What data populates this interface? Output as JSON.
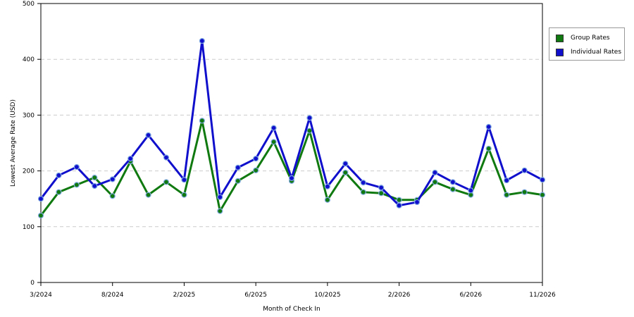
{
  "chart_data": {
    "type": "line",
    "xlabel": "Month of Check In",
    "ylabel": "Lowest Average Rate (USD)",
    "ylim": [
      0,
      500
    ],
    "yticks": [
      "0",
      "100",
      "200",
      "300",
      "400",
      "500"
    ],
    "x_tick_labels": [
      {
        "label": "3/2024",
        "index": 0
      },
      {
        "label": "8/2024",
        "index": 4
      },
      {
        "label": "2/2025",
        "index": 8
      },
      {
        "label": "6/2025",
        "index": 12
      },
      {
        "label": "10/2025",
        "index": 16
      },
      {
        "label": "2/2026",
        "index": 20
      },
      {
        "label": "6/2026",
        "index": 24
      },
      {
        "label": "11/2026",
        "index": 28
      }
    ],
    "grid": "horizontal dashed",
    "legend_position": "right",
    "series": [
      {
        "name": "Group Rates",
        "color": "#107a10",
        "values": [
          120,
          162,
          175,
          188,
          155,
          217,
          157,
          180,
          157,
          290,
          128,
          182,
          201,
          252,
          182,
          272,
          148,
          197,
          162,
          160,
          148,
          148,
          180,
          167,
          157,
          240,
          157,
          162,
          157
        ]
      },
      {
        "name": "Individual Rates",
        "color": "#1010cc",
        "values": [
          150,
          192,
          207,
          173,
          185,
          222,
          264,
          224,
          184,
          433,
          153,
          206,
          222,
          277,
          187,
          295,
          172,
          213,
          179,
          170,
          138,
          144,
          197,
          180,
          165,
          279,
          183,
          201,
          184
        ]
      }
    ]
  },
  "legend": {
    "items": [
      {
        "label": "Group Rates",
        "color": "#107a10"
      },
      {
        "label": "Individual Rates",
        "color": "#1010cc"
      }
    ]
  }
}
